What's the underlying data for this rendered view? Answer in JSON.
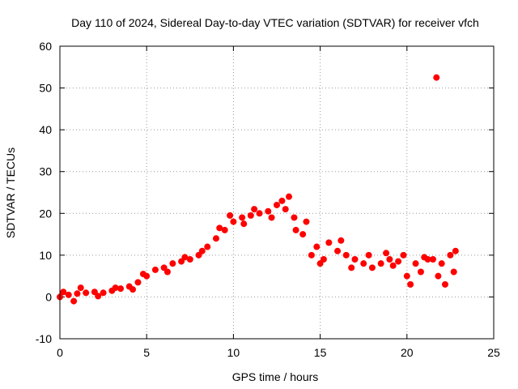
{
  "chart_data": {
    "type": "scatter",
    "title": "Day 110 of 2024, Sidereal Day-to-day VTEC variation (SDTVAR) for receiver vfch",
    "xlabel": "GPS time / hours",
    "ylabel": "SDTVAR / TECUs",
    "xlim": [
      0,
      25
    ],
    "ylim": [
      -10,
      60
    ],
    "xticks": [
      "0",
      "5",
      "10",
      "15",
      "20",
      "25"
    ],
    "yticks": [
      "-10",
      "0",
      "10",
      "20",
      "30",
      "40",
      "50",
      "60"
    ],
    "grid": true,
    "series_color": "#ff0000",
    "series": [
      {
        "name": "SDTVAR",
        "points": [
          [
            0.0,
            0.0
          ],
          [
            0.5,
            0.5
          ],
          [
            1.0,
            0.8
          ],
          [
            1.5,
            1.0
          ],
          [
            2.0,
            1.2
          ],
          [
            2.5,
            1.0
          ],
          [
            3.0,
            1.5
          ],
          [
            3.5,
            2.0
          ],
          [
            4.0,
            2.5
          ],
          [
            4.5,
            3.5
          ],
          [
            5.0,
            5.0
          ],
          [
            5.5,
            6.5
          ],
          [
            6.0,
            7.0
          ],
          [
            6.5,
            8.0
          ],
          [
            7.0,
            8.5
          ],
          [
            7.5,
            9.0
          ],
          [
            8.0,
            10.0
          ],
          [
            8.5,
            12.0
          ],
          [
            9.0,
            14.0
          ],
          [
            9.5,
            16.0
          ],
          [
            10.0,
            18.0
          ],
          [
            10.5,
            19.0
          ],
          [
            11.0,
            19.5
          ],
          [
            11.5,
            20.0
          ],
          [
            12.0,
            20.5
          ],
          [
            12.5,
            22.0
          ],
          [
            13.0,
            21.0
          ],
          [
            13.5,
            19.0
          ],
          [
            14.0,
            15.0
          ],
          [
            14.5,
            10.0
          ],
          [
            15.0,
            8.0
          ],
          [
            15.5,
            13.0
          ],
          [
            16.0,
            11.0
          ],
          [
            16.5,
            10.0
          ],
          [
            17.0,
            9.0
          ],
          [
            17.5,
            8.0
          ],
          [
            18.0,
            7.0
          ],
          [
            18.5,
            8.0
          ],
          [
            19.0,
            9.0
          ],
          [
            19.5,
            8.5
          ],
          [
            20.0,
            5.0
          ],
          [
            20.5,
            8.0
          ],
          [
            21.0,
            9.5
          ],
          [
            21.5,
            9.0
          ],
          [
            22.0,
            8.0
          ],
          [
            22.5,
            10.0
          ],
          [
            21.7,
            52.5
          ],
          [
            0.2,
            1.2
          ],
          [
            0.8,
            -1.0
          ],
          [
            1.2,
            2.2
          ],
          [
            2.2,
            0.2
          ],
          [
            3.2,
            2.2
          ],
          [
            4.2,
            1.8
          ],
          [
            4.8,
            5.5
          ],
          [
            6.2,
            6.0
          ],
          [
            7.2,
            9.5
          ],
          [
            8.2,
            11.0
          ],
          [
            9.2,
            16.5
          ],
          [
            9.8,
            19.5
          ],
          [
            10.6,
            17.5
          ],
          [
            11.2,
            21.0
          ],
          [
            12.2,
            19.0
          ],
          [
            12.8,
            23.0
          ],
          [
            13.2,
            24.0
          ],
          [
            13.6,
            16.0
          ],
          [
            14.2,
            18.0
          ],
          [
            14.8,
            12.0
          ],
          [
            15.2,
            9.0
          ],
          [
            16.2,
            13.5
          ],
          [
            16.8,
            7.0
          ],
          [
            17.8,
            10.0
          ],
          [
            18.8,
            10.5
          ],
          [
            19.2,
            7.5
          ],
          [
            19.8,
            10.0
          ],
          [
            20.2,
            3.0
          ],
          [
            20.8,
            6.0
          ],
          [
            21.2,
            9.0
          ],
          [
            21.8,
            5.0
          ],
          [
            22.2,
            3.0
          ],
          [
            22.7,
            6.0
          ],
          [
            22.8,
            11.0
          ]
        ]
      }
    ]
  }
}
